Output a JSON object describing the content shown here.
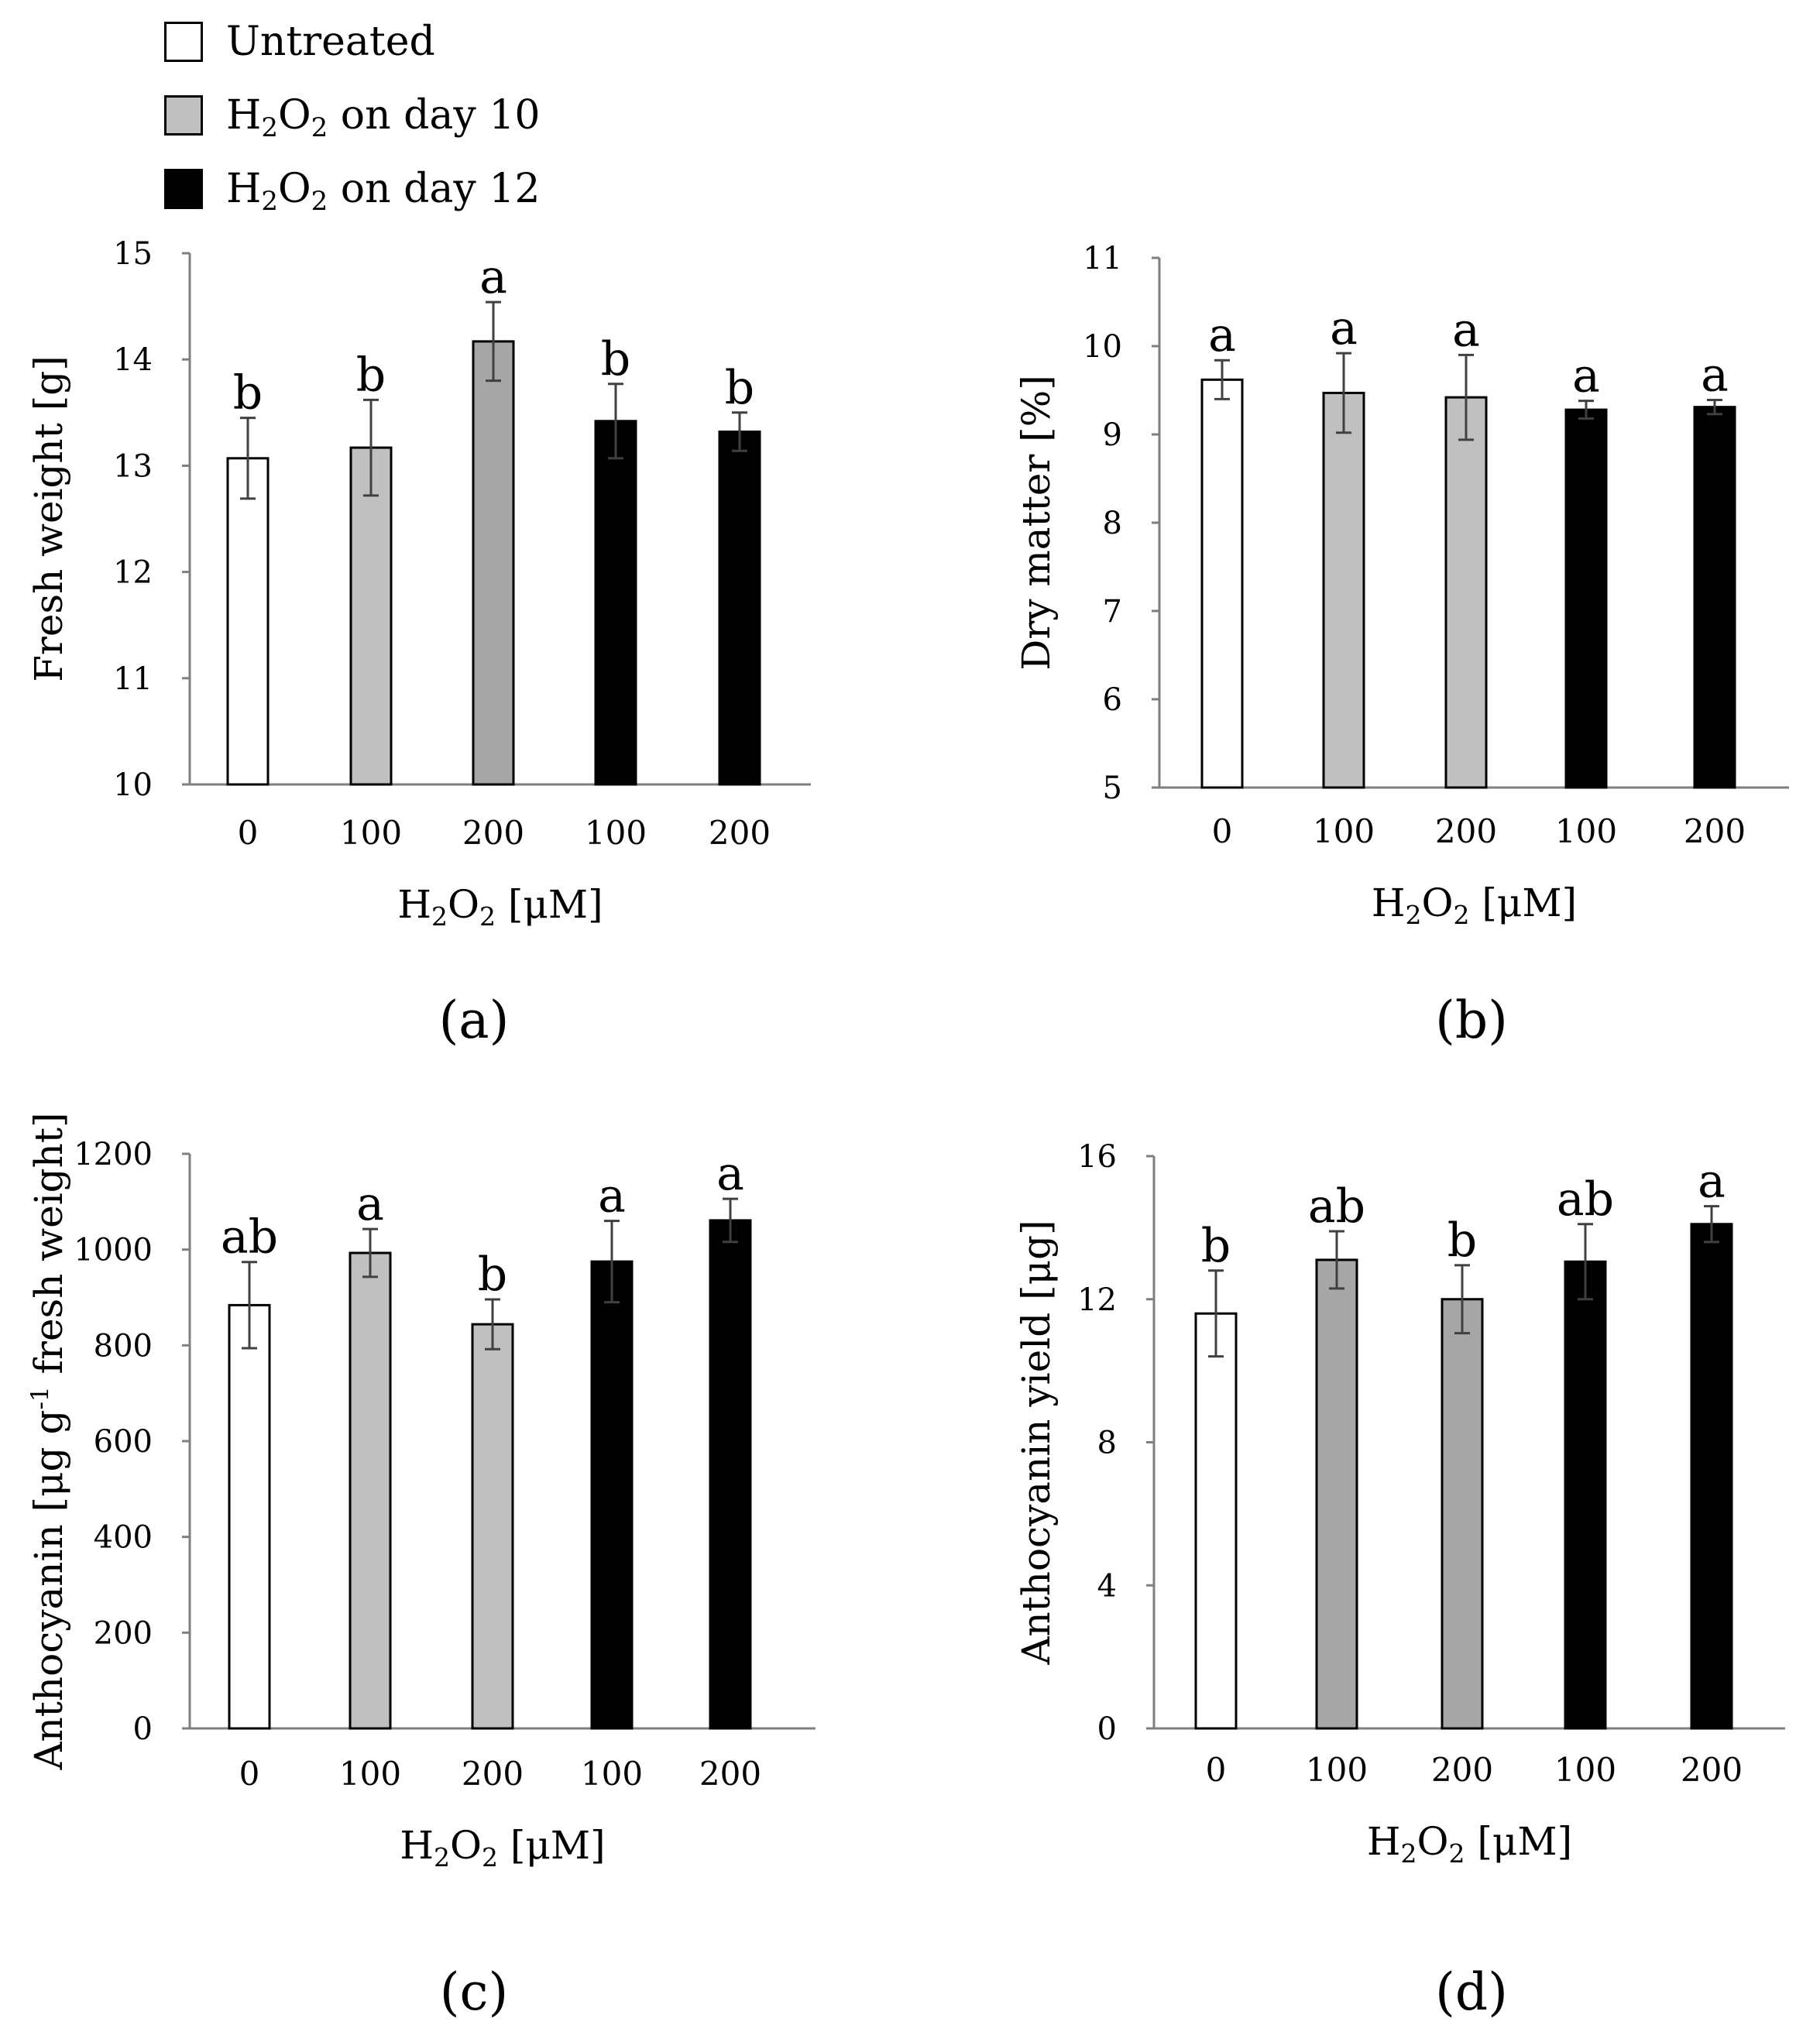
{
  "legend": {
    "items": [
      {
        "label_main": "Untreated",
        "label_sub": "",
        "label_tail": "",
        "color": "#ffffff"
      },
      {
        "label_main": "H",
        "label_sub": "2",
        "label_mid": "O",
        "label_sub2": "2",
        "label_tail": " on day 10",
        "color": "#c0c0c0"
      },
      {
        "label_main": "H",
        "label_sub": "2",
        "label_mid": "O",
        "label_sub2": "2",
        "label_tail": " on day 12",
        "color": "#000000"
      }
    ]
  },
  "chart_data": [
    {
      "panel": "(a)",
      "type": "bar",
      "categories": [
        "0",
        "100",
        "200",
        "100",
        "200"
      ],
      "values": [
        13.07,
        13.17,
        14.17,
        13.42,
        13.32
      ],
      "errors": [
        0.38,
        0.45,
        0.37,
        0.35,
        0.18
      ],
      "letters": [
        "b",
        "b",
        "a",
        "b",
        "b"
      ],
      "colors": [
        "#ffffff",
        "#c0c0c0",
        "#a6a6a6",
        "#000000",
        "#000000"
      ],
      "ylabel": "Fresh weight [g]",
      "xlabel": "H2O2 [μM]",
      "ylim": [
        10,
        15
      ],
      "yticks": [
        10,
        11,
        12,
        13,
        14,
        15
      ]
    },
    {
      "panel": "(b)",
      "type": "bar",
      "categories": [
        "0",
        "100",
        "200",
        "100",
        "200"
      ],
      "values": [
        9.62,
        9.47,
        9.42,
        9.28,
        9.31
      ],
      "errors": [
        0.22,
        0.45,
        0.48,
        0.1,
        0.08
      ],
      "letters": [
        "a",
        "a",
        "a",
        "a",
        "a"
      ],
      "colors": [
        "#ffffff",
        "#c0c0c0",
        "#c0c0c0",
        "#000000",
        "#000000"
      ],
      "ylabel": "Dry matter [%]",
      "xlabel": "H2O2 [μM]",
      "ylim": [
        5,
        11
      ],
      "yticks": [
        5,
        6,
        7,
        8,
        9,
        10,
        11
      ]
    },
    {
      "panel": "(c)",
      "type": "bar",
      "categories": [
        "0",
        "100",
        "200",
        "100",
        "200"
      ],
      "values": [
        884,
        993,
        844,
        975,
        1061
      ],
      "errors": [
        90,
        50,
        52,
        85,
        45
      ],
      "letters": [
        "ab",
        "a",
        "b",
        "a",
        "a"
      ],
      "colors": [
        "#ffffff",
        "#c0c0c0",
        "#c0c0c0",
        "#000000",
        "#000000"
      ],
      "ylabel": "Anthocyanin [μg g-1 fresh weight]",
      "xlabel": "H2O2 [μM]",
      "ylim": [
        0,
        1200
      ],
      "yticks": [
        0,
        200,
        400,
        600,
        800,
        1000,
        1200
      ]
    },
    {
      "panel": "(d)",
      "type": "bar",
      "categories": [
        "0",
        "100",
        "200",
        "100",
        "200"
      ],
      "values": [
        11.6,
        13.1,
        12.0,
        13.05,
        14.1
      ],
      "errors": [
        1.2,
        0.8,
        0.95,
        1.05,
        0.5
      ],
      "letters": [
        "b",
        "ab",
        "b",
        "ab",
        "a"
      ],
      "colors": [
        "#ffffff",
        "#a6a6a6",
        "#a6a6a6",
        "#000000",
        "#000000"
      ],
      "ylabel": "Anthocyanin yield [μg]",
      "xlabel": "H2O2 [μM]",
      "ylim": [
        0,
        16
      ],
      "yticks": [
        0,
        4,
        8,
        12,
        16
      ]
    }
  ]
}
